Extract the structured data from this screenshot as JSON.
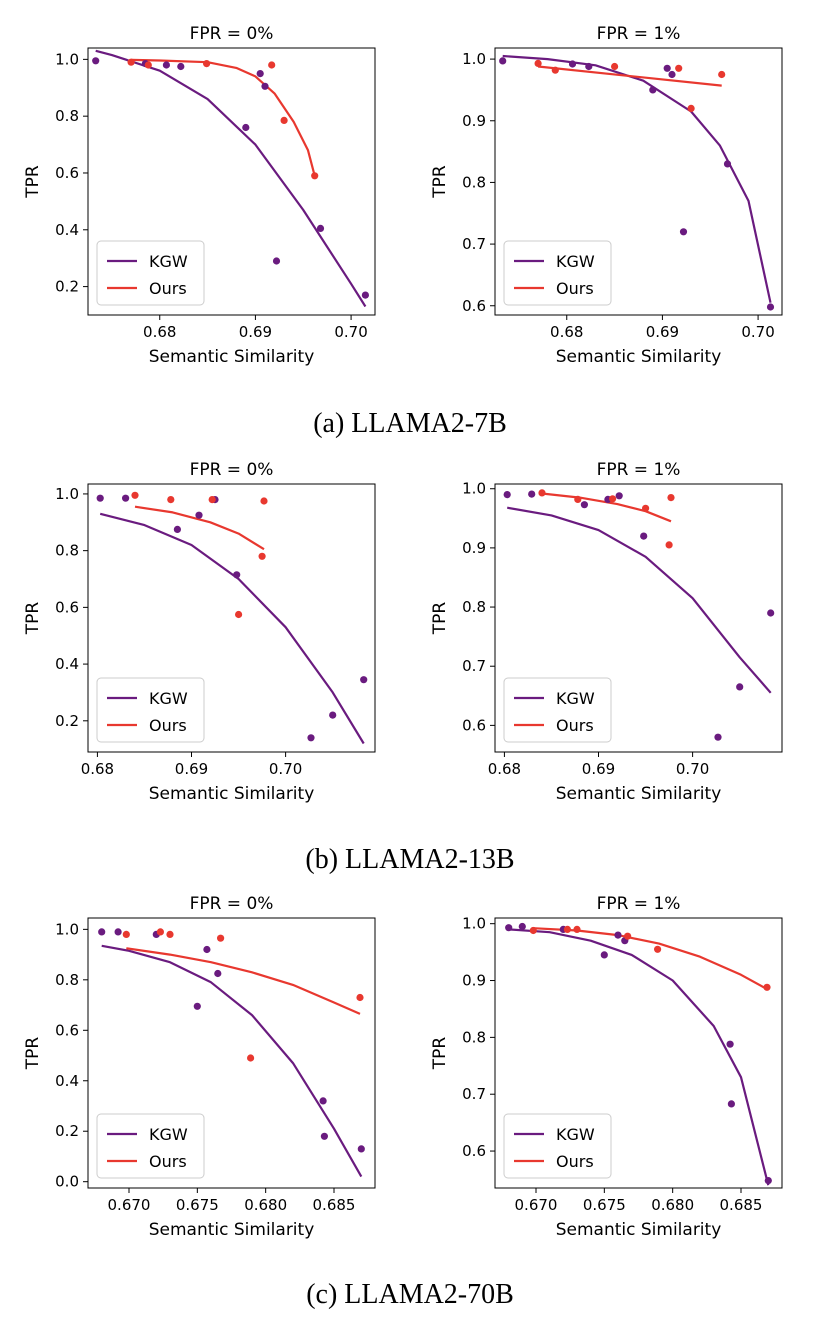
{
  "colors": {
    "kgw": "#6a1b7f",
    "ours": "#e8382f"
  },
  "captions": [
    "(a) LLAMA2-7B",
    "(b) LLAMA2-13B",
    "(c) LLAMA2-70B"
  ],
  "chart_data": [
    {
      "type": "scatter",
      "group": 0,
      "col": 0,
      "title": "FPR = 0%",
      "xlabel": "Semantic Similarity",
      "ylabel": "TPR",
      "xlim": [
        0.6725,
        0.7025
      ],
      "ylim": [
        0.1,
        1.04
      ],
      "xticks": [
        0.68,
        0.69,
        0.7
      ],
      "xtick_labels": [
        "0.68",
        "0.69",
        "0.70"
      ],
      "yticks": [
        0.2,
        0.4,
        0.6,
        0.8,
        1.0
      ],
      "ytick_labels": [
        "0.2",
        "0.4",
        "0.6",
        "0.8",
        "1.0"
      ],
      "legend": "lower-left",
      "legend_entries": [
        "KGW",
        "Ours"
      ],
      "series": [
        {
          "name": "KGW",
          "color": "kgw",
          "x": [
            0.6733,
            0.6785,
            0.6807,
            0.6822,
            0.689,
            0.6905,
            0.691,
            0.6922,
            0.6968,
            0.7015
          ],
          "y": [
            0.995,
            0.985,
            0.98,
            0.975,
            0.76,
            0.95,
            0.905,
            0.29,
            0.405,
            0.17
          ],
          "fit": {
            "x": [
              0.6733,
              0.675,
              0.68,
              0.685,
              0.69,
              0.695,
              0.7,
              0.7015
            ],
            "y": [
              1.03,
              1.015,
              0.96,
              0.86,
              0.7,
              0.47,
              0.21,
              0.13
            ]
          }
        },
        {
          "name": "Ours",
          "color": "ours",
          "x": [
            0.677,
            0.6788,
            0.6849,
            0.6917,
            0.693,
            0.6962
          ],
          "y": [
            0.99,
            0.98,
            0.985,
            0.98,
            0.785,
            0.59
          ],
          "fit": {
            "x": [
              0.677,
              0.68,
              0.685,
              0.688,
              0.69,
              0.692,
              0.694,
              0.6955,
              0.6962
            ],
            "y": [
              0.998,
              0.996,
              0.99,
              0.97,
              0.94,
              0.88,
              0.78,
              0.68,
              0.59
            ]
          }
        }
      ]
    },
    {
      "type": "scatter",
      "group": 0,
      "col": 1,
      "title": "FPR = 1%",
      "xlabel": "Semantic Similarity",
      "ylabel": "TPR",
      "xlim": [
        0.6725,
        0.7025
      ],
      "ylim": [
        0.585,
        1.018
      ],
      "xticks": [
        0.68,
        0.69,
        0.7
      ],
      "xtick_labels": [
        "0.68",
        "0.69",
        "0.70"
      ],
      "yticks": [
        0.6,
        0.7,
        0.8,
        0.9,
        1.0
      ],
      "ytick_labels": [
        "0.6",
        "0.7",
        "0.8",
        "0.9",
        "1.0"
      ],
      "legend": "lower-left",
      "legend_entries": [
        "KGW",
        "Ours"
      ],
      "series": [
        {
          "name": "KGW",
          "color": "kgw",
          "x": [
            0.6733,
            0.6806,
            0.6823,
            0.689,
            0.6905,
            0.691,
            0.6922,
            0.6968,
            0.7013
          ],
          "y": [
            0.997,
            0.992,
            0.988,
            0.95,
            0.985,
            0.975,
            0.72,
            0.83,
            0.598
          ],
          "fit": {
            "x": [
              0.6733,
              0.678,
              0.683,
              0.688,
              0.693,
              0.696,
              0.699,
              0.7013
            ],
            "y": [
              1.005,
              1.0,
              0.99,
              0.965,
              0.915,
              0.86,
              0.77,
              0.605
            ]
          }
        },
        {
          "name": "Ours",
          "color": "ours",
          "x": [
            0.677,
            0.6788,
            0.685,
            0.6917,
            0.693,
            0.6962
          ],
          "y": [
            0.993,
            0.982,
            0.988,
            0.985,
            0.92,
            0.975
          ],
          "fit": {
            "x": [
              0.677,
              0.6962
            ],
            "y": [
              0.988,
              0.957
            ]
          }
        }
      ]
    },
    {
      "type": "scatter",
      "group": 1,
      "col": 0,
      "title": "FPR = 0%",
      "xlabel": "Semantic Similarity",
      "ylabel": "TPR",
      "xlim": [
        0.679,
        0.7095
      ],
      "ylim": [
        0.09,
        1.035
      ],
      "xticks": [
        0.68,
        0.69,
        0.7
      ],
      "xtick_labels": [
        "0.68",
        "0.69",
        "0.70"
      ],
      "yticks": [
        0.2,
        0.4,
        0.6,
        0.8,
        1.0
      ],
      "ytick_labels": [
        "0.2",
        "0.4",
        "0.6",
        "0.8",
        "1.0"
      ],
      "legend": "lower-left",
      "legend_entries": [
        "KGW",
        "Ours"
      ],
      "series": [
        {
          "name": "KGW",
          "color": "kgw",
          "x": [
            0.6803,
            0.683,
            0.6885,
            0.6908,
            0.6925,
            0.6948,
            0.7027,
            0.705,
            0.7083
          ],
          "y": [
            0.985,
            0.985,
            0.875,
            0.925,
            0.98,
            0.715,
            0.14,
            0.22,
            0.345
          ],
          "fit": {
            "x": [
              0.6803,
              0.685,
              0.69,
              0.695,
              0.7,
              0.705,
              0.7083
            ],
            "y": [
              0.93,
              0.89,
              0.82,
              0.7,
              0.53,
              0.3,
              0.12
            ]
          }
        },
        {
          "name": "Ours",
          "color": "ours",
          "x": [
            0.684,
            0.6878,
            0.6922,
            0.695,
            0.6975,
            0.6977
          ],
          "y": [
            0.995,
            0.98,
            0.98,
            0.575,
            0.78,
            0.975
          ],
          "fit": {
            "x": [
              0.684,
              0.688,
              0.692,
              0.695,
              0.6977
            ],
            "y": [
              0.955,
              0.935,
              0.9,
              0.86,
              0.805
            ]
          }
        }
      ]
    },
    {
      "type": "scatter",
      "group": 1,
      "col": 1,
      "title": "FPR = 1%",
      "xlabel": "Semantic Similarity",
      "ylabel": "TPR",
      "xlim": [
        0.679,
        0.7095
      ],
      "ylim": [
        0.555,
        1.008
      ],
      "xticks": [
        0.68,
        0.69,
        0.7
      ],
      "xtick_labels": [
        "0.68",
        "0.69",
        "0.70"
      ],
      "yticks": [
        0.6,
        0.7,
        0.8,
        0.9,
        1.0
      ],
      "ytick_labels": [
        "0.6",
        "0.7",
        "0.8",
        "0.9",
        "1.0"
      ],
      "legend": "lower-left",
      "legend_entries": [
        "KGW",
        "Ours"
      ],
      "series": [
        {
          "name": "KGW",
          "color": "kgw",
          "x": [
            0.6803,
            0.6829,
            0.6885,
            0.691,
            0.6948,
            0.6922,
            0.7027,
            0.705,
            0.7083
          ],
          "y": [
            0.99,
            0.991,
            0.973,
            0.982,
            0.92,
            0.988,
            0.58,
            0.665,
            0.79
          ],
          "fit": {
            "x": [
              0.6803,
              0.685,
              0.69,
              0.695,
              0.7,
              0.705,
              0.7083
            ],
            "y": [
              0.968,
              0.955,
              0.93,
              0.885,
              0.815,
              0.715,
              0.655
            ]
          }
        },
        {
          "name": "Ours",
          "color": "ours",
          "x": [
            0.684,
            0.6878,
            0.6915,
            0.695,
            0.6975,
            0.6977
          ],
          "y": [
            0.993,
            0.982,
            0.983,
            0.967,
            0.905,
            0.985
          ],
          "fit": {
            "x": [
              0.684,
              0.688,
              0.692,
              0.695,
              0.6977
            ],
            "y": [
              0.992,
              0.985,
              0.974,
              0.962,
              0.945
            ]
          }
        }
      ]
    },
    {
      "type": "scatter",
      "group": 2,
      "col": 0,
      "title": "FPR = 0%",
      "xlabel": "Semantic Similarity",
      "ylabel": "TPR",
      "xlim": [
        0.667,
        0.688
      ],
      "ylim": [
        -0.025,
        1.045
      ],
      "xticks": [
        0.67,
        0.675,
        0.68,
        0.685
      ],
      "xtick_labels": [
        "0.670",
        "0.675",
        "0.680",
        "0.685"
      ],
      "yticks": [
        0.0,
        0.2,
        0.4,
        0.6,
        0.8,
        1.0
      ],
      "ytick_labels": [
        "0.0",
        "0.2",
        "0.4",
        "0.6",
        "0.8",
        "1.0"
      ],
      "legend": "lower-left",
      "legend_entries": [
        "KGW",
        "Ours"
      ],
      "series": [
        {
          "name": "KGW",
          "color": "kgw",
          "x": [
            0.668,
            0.6692,
            0.672,
            0.675,
            0.6757,
            0.6765,
            0.6842,
            0.6843,
            0.687
          ],
          "y": [
            0.99,
            0.99,
            0.98,
            0.695,
            0.92,
            0.825,
            0.32,
            0.18,
            0.13
          ],
          "fit": {
            "x": [
              0.668,
              0.67,
              0.673,
              0.676,
              0.679,
              0.682,
              0.685,
              0.687
            ],
            "y": [
              0.935,
              0.915,
              0.87,
              0.79,
              0.66,
              0.47,
              0.21,
              0.02
            ]
          }
        },
        {
          "name": "Ours",
          "color": "ours",
          "x": [
            0.6698,
            0.6723,
            0.673,
            0.6767,
            0.6789,
            0.6869
          ],
          "y": [
            0.98,
            0.99,
            0.98,
            0.965,
            0.49,
            0.73
          ],
          "fit": {
            "x": [
              0.6698,
              0.673,
              0.676,
              0.679,
              0.682,
              0.685,
              0.6869
            ],
            "y": [
              0.925,
              0.9,
              0.87,
              0.83,
              0.78,
              0.71,
              0.665
            ]
          }
        }
      ]
    },
    {
      "type": "scatter",
      "group": 2,
      "col": 1,
      "title": "FPR = 1%",
      "xlabel": "Semantic Similarity",
      "ylabel": "TPR",
      "xlim": [
        0.667,
        0.688
      ],
      "ylim": [
        0.535,
        1.01
      ],
      "xticks": [
        0.67,
        0.675,
        0.68,
        0.685
      ],
      "xtick_labels": [
        "0.670",
        "0.675",
        "0.680",
        "0.685"
      ],
      "yticks": [
        0.6,
        0.7,
        0.8,
        0.9,
        1.0
      ],
      "ytick_labels": [
        "0.6",
        "0.7",
        "0.8",
        "0.9",
        "1.0"
      ],
      "legend": "lower-left",
      "legend_entries": [
        "KGW",
        "Ours"
      ],
      "series": [
        {
          "name": "KGW",
          "color": "kgw",
          "x": [
            0.668,
            0.669,
            0.672,
            0.675,
            0.676,
            0.6765,
            0.6842,
            0.6843,
            0.687
          ],
          "y": [
            0.993,
            0.995,
            0.99,
            0.945,
            0.98,
            0.97,
            0.788,
            0.683,
            0.548
          ],
          "fit": {
            "x": [
              0.668,
              0.671,
              0.674,
              0.677,
              0.68,
              0.683,
              0.685,
              0.687
            ],
            "y": [
              0.99,
              0.985,
              0.97,
              0.945,
              0.9,
              0.82,
              0.73,
              0.54
            ]
          }
        },
        {
          "name": "Ours",
          "color": "ours",
          "x": [
            0.6698,
            0.6723,
            0.673,
            0.6767,
            0.6789,
            0.6869
          ],
          "y": [
            0.988,
            0.99,
            0.99,
            0.978,
            0.955,
            0.888
          ],
          "fit": {
            "x": [
              0.6698,
              0.673,
              0.676,
              0.679,
              0.682,
              0.685,
              0.6869
            ],
            "y": [
              0.992,
              0.988,
              0.98,
              0.965,
              0.942,
              0.91,
              0.885
            ]
          }
        }
      ]
    }
  ]
}
